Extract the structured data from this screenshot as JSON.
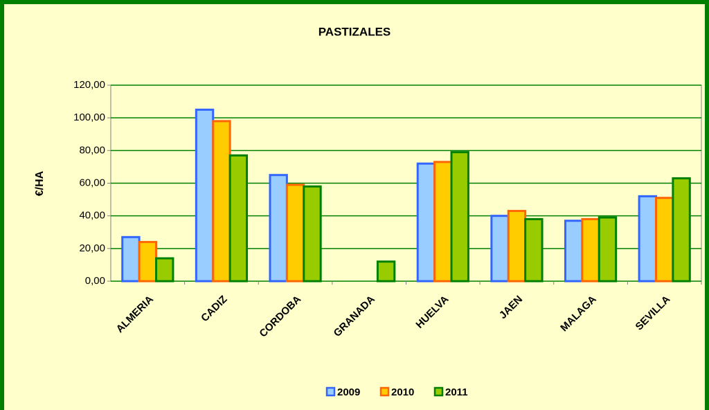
{
  "chart_data": {
    "type": "bar",
    "title": "PASTIZALES",
    "y_label": "€/HA",
    "categories": [
      "ALMERIA",
      "CADIZ",
      "CORDOBA",
      "GRANADA",
      "HUELVA",
      "JAEN",
      "MALAGA",
      "SEVILLA"
    ],
    "series": [
      {
        "name": "2009",
        "color": "#99ccff",
        "edge_color": "#3366ff",
        "values": [
          27,
          105,
          65,
          null,
          72,
          40,
          37,
          52
        ]
      },
      {
        "name": "2010",
        "color": "#ffcc00",
        "edge_color": "#ff6600",
        "values": [
          24,
          98,
          59,
          null,
          73,
          43,
          38,
          51
        ]
      },
      {
        "name": "2011",
        "color": "#99cc00",
        "edge_color": "#008000",
        "values": [
          14,
          77,
          58,
          12,
          79,
          38,
          39,
          63
        ]
      }
    ],
    "ylim": [
      0,
      120
    ],
    "yticks": [
      {
        "value": 0,
        "label": "0,00"
      },
      {
        "value": 20,
        "label": "20,00"
      },
      {
        "value": 40,
        "label": "40,00"
      },
      {
        "value": 60,
        "label": "60,00"
      },
      {
        "value": 80,
        "label": "80,00"
      },
      {
        "value": 100,
        "label": "100,00"
      },
      {
        "value": 120,
        "label": "120,00"
      }
    ],
    "grid": true,
    "legend": "bottom"
  }
}
